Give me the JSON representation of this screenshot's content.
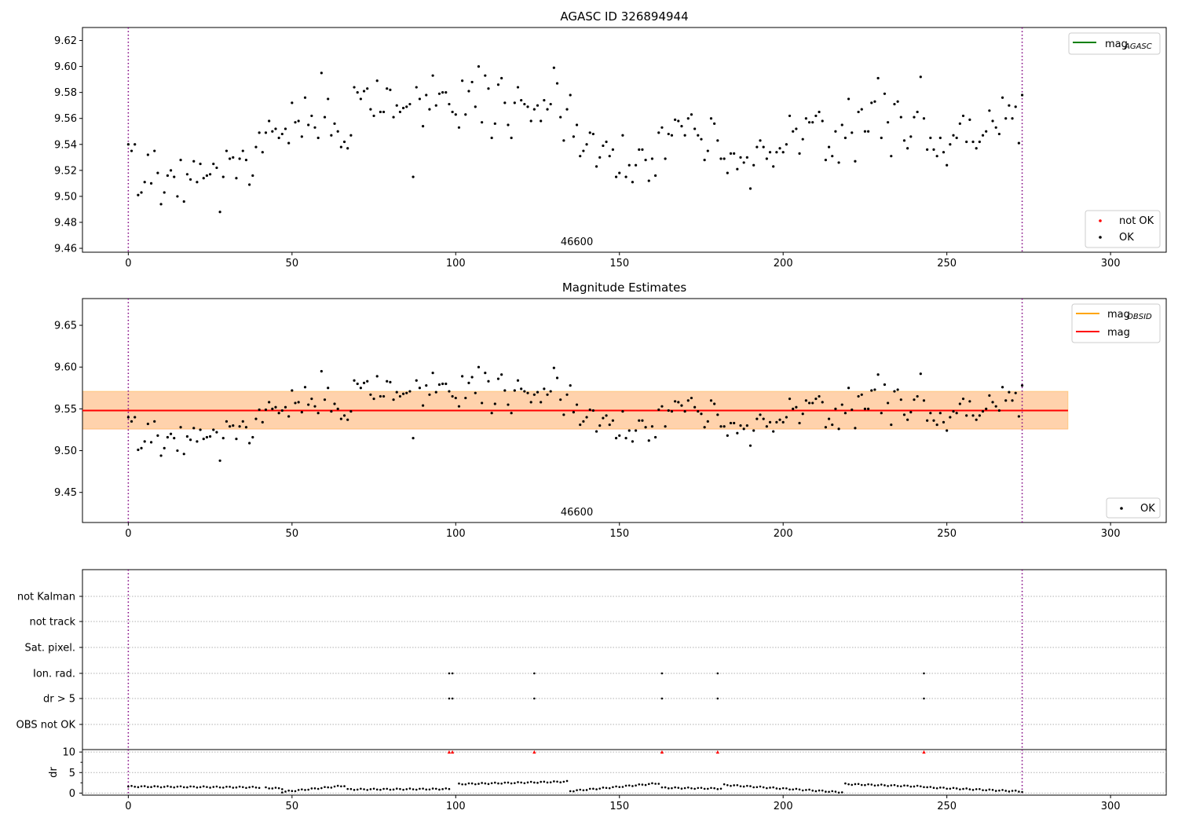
{
  "figure": {
    "label_46600": "46600"
  },
  "chart_data": [
    {
      "type": "scatter",
      "title": "AGASC ID 326894944",
      "xlabel": "",
      "ylabel": "",
      "xlim": [
        -14,
        317
      ],
      "ylim": [
        9.457,
        9.63
      ],
      "xticks": [
        0,
        50,
        100,
        150,
        200,
        250,
        300
      ],
      "yticks": [
        9.46,
        9.48,
        9.5,
        9.52,
        9.54,
        9.56,
        9.58,
        9.6,
        9.62
      ],
      "vlines": [
        0,
        273
      ],
      "annotation": "46600",
      "legends": [
        {
          "placement": "top-right",
          "entries": [
            {
              "label": "mag",
              "subscript": "AGASC",
              "color": "#008000",
              "kind": "line"
            }
          ]
        },
        {
          "placement": "bottom-right",
          "entries": [
            {
              "label": "not OK",
              "color": "#ff0000",
              "kind": "point"
            },
            {
              "label": "OK",
              "color": "#000000",
              "kind": "point"
            }
          ]
        }
      ],
      "series": [
        {
          "name": "OK",
          "color": "#000000",
          "x": [
            0,
            1,
            2,
            3,
            4,
            5,
            6,
            7,
            8,
            9,
            10,
            11,
            12,
            13,
            14,
            15,
            16,
            17,
            18,
            19,
            20,
            21,
            22,
            23,
            24,
            25,
            26,
            27,
            28,
            29,
            30,
            31,
            32,
            33,
            34,
            35,
            36,
            37,
            38,
            39,
            40,
            41,
            42,
            43,
            44,
            45,
            46,
            47,
            48,
            49,
            50,
            51,
            52,
            53,
            54,
            55,
            56,
            57,
            58,
            59,
            60,
            61,
            62,
            63,
            64,
            65,
            66,
            67,
            68,
            69,
            70,
            71,
            72,
            73,
            74,
            75,
            76,
            77,
            78,
            79,
            80,
            81,
            82,
            83,
            84,
            85,
            86,
            87,
            88,
            89,
            90,
            91,
            92,
            93,
            94,
            95,
            96,
            97,
            98,
            99,
            100,
            101,
            102,
            103,
            104,
            105,
            106,
            107,
            108,
            109,
            110,
            111,
            112,
            113,
            114,
            115,
            116,
            117,
            118,
            119,
            120,
            121,
            122,
            123,
            124,
            125,
            126,
            127,
            128,
            129,
            130,
            131,
            132,
            133,
            134,
            135,
            136,
            137,
            138,
            139,
            140,
            141,
            142,
            143,
            144,
            145,
            146,
            147,
            148,
            149,
            150,
            151,
            152,
            153,
            154,
            155,
            156,
            157,
            158,
            159,
            160,
            161,
            162,
            163,
            164,
            165,
            166,
            167,
            168,
            169,
            170,
            171,
            172,
            173,
            174,
            175,
            176,
            177,
            178,
            179,
            180,
            181,
            182,
            183,
            184,
            185,
            186,
            187,
            188,
            189,
            190,
            191,
            192,
            193,
            194,
            195,
            196,
            197,
            198,
            199,
            200,
            201,
            202,
            203,
            204,
            205,
            206,
            207,
            208,
            209,
            210,
            211,
            212,
            213,
            214,
            215,
            216,
            217,
            218,
            219,
            220,
            221,
            222,
            223,
            224,
            225,
            226,
            227,
            228,
            229,
            230,
            231,
            232,
            233,
            234,
            235,
            236,
            237,
            238,
            239,
            240,
            241,
            242,
            243,
            244,
            245,
            246,
            247,
            248,
            249,
            250,
            251,
            252,
            253,
            254,
            255,
            256,
            257,
            258,
            259,
            260,
            261,
            262,
            263,
            264,
            265,
            266,
            267,
            268,
            269,
            270,
            271,
            272,
            273
          ],
          "y": [
            9.54,
            9.535,
            9.54,
            9.501,
            9.503,
            9.511,
            9.532,
            9.51,
            9.535,
            9.518,
            9.494,
            9.503,
            9.516,
            9.52,
            9.515,
            9.5,
            9.528,
            9.496,
            9.517,
            9.513,
            9.527,
            9.511,
            9.525,
            9.514,
            9.516,
            9.517,
            9.525,
            9.522,
            9.488,
            9.515,
            9.535,
            9.529,
            9.53,
            9.514,
            9.529,
            9.535,
            9.528,
            9.509,
            9.516,
            9.538,
            9.549,
            9.534,
            9.549,
            9.558,
            9.55,
            9.552,
            9.545,
            9.548,
            9.552,
            9.541,
            9.572,
            9.557,
            9.558,
            9.546,
            9.576,
            9.555,
            9.562,
            9.553,
            9.545,
            9.595,
            9.561,
            9.575,
            9.547,
            9.556,
            9.55,
            9.538,
            9.542,
            9.537,
            9.547,
            9.584,
            9.58,
            9.575,
            9.581,
            9.583,
            9.567,
            9.562,
            9.589,
            9.565,
            9.565,
            9.583,
            9.582,
            9.561,
            9.57,
            9.565,
            9.568,
            9.569,
            9.571,
            9.515,
            9.584,
            9.575,
            9.554,
            9.578,
            9.567,
            9.593,
            9.57,
            9.579,
            9.58,
            9.58,
            9.571,
            9.565,
            9.563,
            9.553,
            9.589,
            9.563,
            9.581,
            9.588,
            9.569,
            9.6,
            9.557,
            9.593,
            9.583,
            9.545,
            9.556,
            9.586,
            9.591,
            9.572,
            9.555,
            9.545,
            9.572,
            9.584,
            9.574,
            9.571,
            9.569,
            9.558,
            9.567,
            9.57,
            9.558,
            9.574,
            9.567,
            9.571,
            9.599,
            9.587,
            9.561,
            9.543,
            9.567,
            9.578,
            9.546,
            9.555,
            9.531,
            9.535,
            9.54,
            9.549,
            9.548,
            9.523,
            9.53,
            9.539,
            9.542,
            9.531,
            9.536,
            9.515,
            9.518,
            9.547,
            9.515,
            9.524,
            9.511,
            9.524,
            9.536,
            9.536,
            9.528,
            9.512,
            9.529,
            9.516,
            9.549,
            9.553,
            9.529,
            9.548,
            9.547,
            9.559,
            9.558,
            9.554,
            9.547,
            9.56,
            9.563,
            9.552,
            9.547,
            9.544,
            9.528,
            9.535,
            9.56,
            9.556,
            9.543,
            9.529,
            9.529,
            9.518,
            9.533,
            9.533,
            9.521,
            9.53,
            9.526,
            9.53,
            9.506,
            9.524,
            9.538,
            9.543,
            9.538,
            9.529,
            9.534,
            9.523,
            9.534,
            9.537,
            9.534,
            9.54,
            9.562,
            9.55,
            9.552,
            9.533,
            9.544,
            9.56,
            9.557,
            9.557,
            9.562,
            9.565,
            9.558,
            9.528,
            9.538,
            9.531,
            9.55,
            9.526,
            9.555,
            9.545,
            9.575,
            9.549,
            9.527,
            9.565,
            9.567,
            9.55,
            9.55,
            9.572,
            9.573,
            9.591,
            9.545,
            9.579,
            9.557,
            9.531,
            9.571,
            9.573,
            9.561,
            9.543,
            9.537,
            9.546,
            9.561,
            9.565,
            9.592,
            9.56,
            9.536,
            9.545,
            9.536,
            9.531,
            9.545,
            9.534,
            9.524,
            9.54,
            9.547,
            9.545,
            9.556,
            9.562,
            9.542,
            9.559,
            9.542,
            9.537,
            9.542,
            9.547,
            9.55,
            9.566,
            9.558,
            9.553,
            9.548,
            9.576,
            9.56,
            9.57,
            9.56,
            9.569,
            9.541,
            9.578
          ]
        },
        {
          "name": "mag_AGASC",
          "color": "#008000",
          "type": "line",
          "x": [],
          "y": []
        }
      ]
    },
    {
      "type": "scatter",
      "title": "Magnitude Estimates",
      "xlabel": "",
      "ylabel": "",
      "xlim": [
        -14,
        317
      ],
      "ylim": [
        9.414,
        9.682
      ],
      "xticks": [
        0,
        50,
        100,
        150,
        200,
        250,
        300
      ],
      "yticks": [
        9.45,
        9.5,
        9.55,
        9.6,
        9.65
      ],
      "vlines": [
        0,
        273
      ],
      "annotation": "46600",
      "bands": [
        {
          "x": [
            -14,
            287
          ],
          "y": [
            9.525,
            9.571
          ],
          "color": "#ffb6c1",
          "opacity": 0.4
        },
        {
          "x": [
            -14,
            287
          ],
          "y": [
            9.526,
            9.571
          ],
          "color": "#ffa500",
          "opacity": 0.25
        }
      ],
      "hlines": [
        {
          "name": "mag_OBSID",
          "y": 9.548,
          "x": [
            -14,
            287
          ],
          "color": "#ffa500"
        },
        {
          "name": "mag",
          "y": 9.548,
          "x": [
            -14,
            287
          ],
          "color": "#ff0000"
        }
      ],
      "legends": [
        {
          "placement": "top-right",
          "entries": [
            {
              "label": "mag",
              "subscript": "OBSID",
              "color": "#ffa500",
              "kind": "line"
            },
            {
              "label": "mag",
              "color": "#ff0000",
              "kind": "line"
            }
          ]
        },
        {
          "placement": "bottom-right",
          "entries": [
            {
              "label": "OK",
              "color": "#000000",
              "kind": "point"
            }
          ]
        }
      ],
      "series": [
        {
          "name": "OK",
          "color": "#000000",
          "same_as_panel": 0
        }
      ]
    },
    {
      "type": "scatter",
      "title": "",
      "xlim": [
        -14,
        317
      ],
      "xticks": [
        0,
        50,
        100,
        150,
        200,
        250,
        300
      ],
      "vlines": [
        0,
        273
      ],
      "categories": [
        "not Kalman",
        "not track",
        "Sat. pixel.",
        "Ion. rad.",
        "dr > 5",
        "OBS not OK"
      ],
      "flags": [
        {
          "category": "Ion. rad.",
          "x": [
            98,
            99,
            124,
            163,
            180,
            243
          ]
        },
        {
          "category": "dr > 5",
          "x": [
            98,
            99,
            124,
            163,
            180,
            243
          ]
        }
      ]
    },
    {
      "type": "scatter",
      "title": "",
      "ylabel": "dr",
      "xlim": [
        -14,
        317
      ],
      "ylim": [
        -0.5,
        10.6
      ],
      "xticks": [
        0,
        50,
        100,
        150,
        200,
        250,
        300
      ],
      "yticks": [
        0,
        5,
        10
      ],
      "vlines": [
        0,
        273
      ],
      "flag_markers": {
        "color": "#ff0000",
        "y": 10,
        "x": [
          98,
          99,
          124,
          163,
          180,
          243
        ]
      },
      "series": [
        {
          "name": "dr",
          "color": "#000000",
          "segments": [
            {
              "x": [
                0,
                40
              ],
              "y0": 1.6,
              "y1": 1.4,
              "dip": 1.0
            },
            {
              "x": [
                42,
                47
              ],
              "y0": 1.3,
              "y1": 1.1
            },
            {
              "x": [
                47,
                66
              ],
              "y0": 0.3,
              "y1": 1.8,
              "dip": 0.3
            },
            {
              "x": [
                67,
                98
              ],
              "y0": 0.9,
              "y1": 1.0
            },
            {
              "x": [
                101,
                134
              ],
              "y0": 2.2,
              "y1": 2.8
            },
            {
              "x": [
                135,
                162
              ],
              "y0": 0.5,
              "y1": 2.4
            },
            {
              "x": [
                163,
                181
              ],
              "y0": 1.3,
              "y1": 1.1
            },
            {
              "x": [
                182,
                218
              ],
              "y0": 2.0,
              "y1": 0.2,
              "dip": 0.1
            },
            {
              "x": [
                219,
                243
              ],
              "y0": 2.2,
              "y1": 1.6
            },
            {
              "x": [
                244,
                273
              ],
              "y0": 1.4,
              "y1": 0.4
            }
          ]
        }
      ]
    }
  ]
}
